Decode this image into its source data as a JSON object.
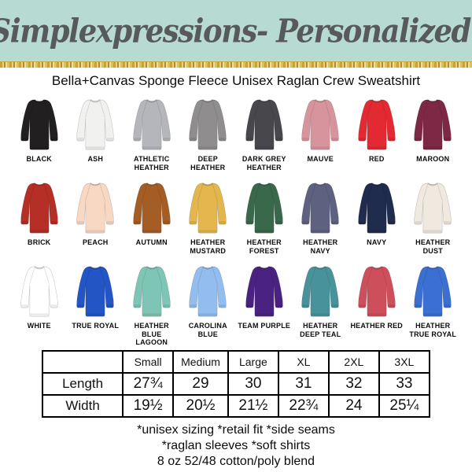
{
  "header": {
    "brand": "Simplexpressions- Personalized!",
    "product_title": "Bella+Canvas Sponge Fleece Unisex Raglan Crew Sweatshirt"
  },
  "theme": {
    "banner_bg": "#b7dbd3",
    "brand_text_color": "#58595b",
    "glitter_gold": "#d4af37",
    "table_border": "#000000"
  },
  "colors": [
    {
      "name": "BLACK",
      "hex": "#221f21"
    },
    {
      "name": "ASH",
      "hex": "#f1f1ef"
    },
    {
      "name": "ATHLETIC HEATHER",
      "hex": "#b4b6bb"
    },
    {
      "name": "DEEP HEATHER",
      "hex": "#8f8d8e"
    },
    {
      "name": "DARK GREY HEATHER",
      "hex": "#48474c"
    },
    {
      "name": "MAUVE",
      "hex": "#d8949c"
    },
    {
      "name": "RED",
      "hex": "#e32a33"
    },
    {
      "name": "MAROON",
      "hex": "#7d2845"
    },
    {
      "name": "BRICK",
      "hex": "#b52f26"
    },
    {
      "name": "PEACH",
      "hex": "#f8d8c3"
    },
    {
      "name": "AUTUMN",
      "hex": "#a55d26"
    },
    {
      "name": "HEATHER MUSTARD",
      "hex": "#e3b74d"
    },
    {
      "name": "HEATHER FOREST",
      "hex": "#3a684a"
    },
    {
      "name": "HEATHER NAVY",
      "hex": "#5f6181"
    },
    {
      "name": "NAVY",
      "hex": "#202c4e"
    },
    {
      "name": "HEATHER DUST",
      "hex": "#f0e9e0"
    },
    {
      "name": "WHITE",
      "hex": "#ffffff"
    },
    {
      "name": "TRUE ROYAL",
      "hex": "#2355c5"
    },
    {
      "name": "HEATHER BLUE LAGOON",
      "hex": "#7ec5b5"
    },
    {
      "name": "CAROLINA BLUE",
      "hex": "#92bdee"
    },
    {
      "name": "TEAM PURPLE",
      "hex": "#4a2382"
    },
    {
      "name": "HEATHER DEEP TEAL",
      "hex": "#48939b"
    },
    {
      "name": "HEATHER RED",
      "hex": "#ce4f5c"
    },
    {
      "name": "HEATHER TRUE ROYAL",
      "hex": "#3b6fd2"
    }
  ],
  "size_chart": {
    "columns": [
      "",
      "Small",
      "Medium",
      "Large",
      "XL",
      "2XL",
      "3XL"
    ],
    "rows": [
      {
        "label": "Length",
        "values": [
          "27¾",
          "29",
          "30",
          "31",
          "32",
          "33"
        ]
      },
      {
        "label": "Width",
        "values": [
          "19½",
          "20½",
          "21½",
          "22¾",
          "24",
          "25¼"
        ]
      }
    ]
  },
  "notes": [
    "*unisex sizing *retail fit *side seams",
    "*raglan sleeves *soft shirts",
    "8 oz 52/48 cotton/poly blend"
  ]
}
